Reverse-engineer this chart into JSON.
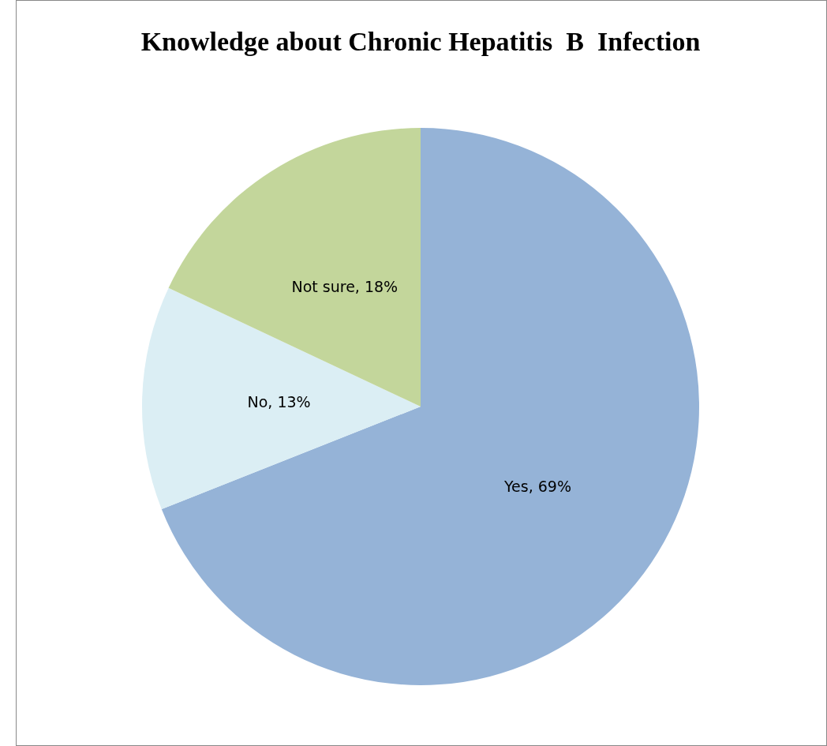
{
  "chart_data": {
    "type": "pie",
    "title": "Knowledge about Chronic Hepatitis  B  Infection",
    "categories": [
      "Yes",
      "No",
      "Not sure"
    ],
    "values": [
      69,
      13,
      18
    ],
    "colors": [
      "#95b3d7",
      "#dbeef4",
      "#c3d69b"
    ],
    "value_labels": [
      ", 69%",
      ", 13%",
      ", 18%"
    ],
    "legend": false
  }
}
